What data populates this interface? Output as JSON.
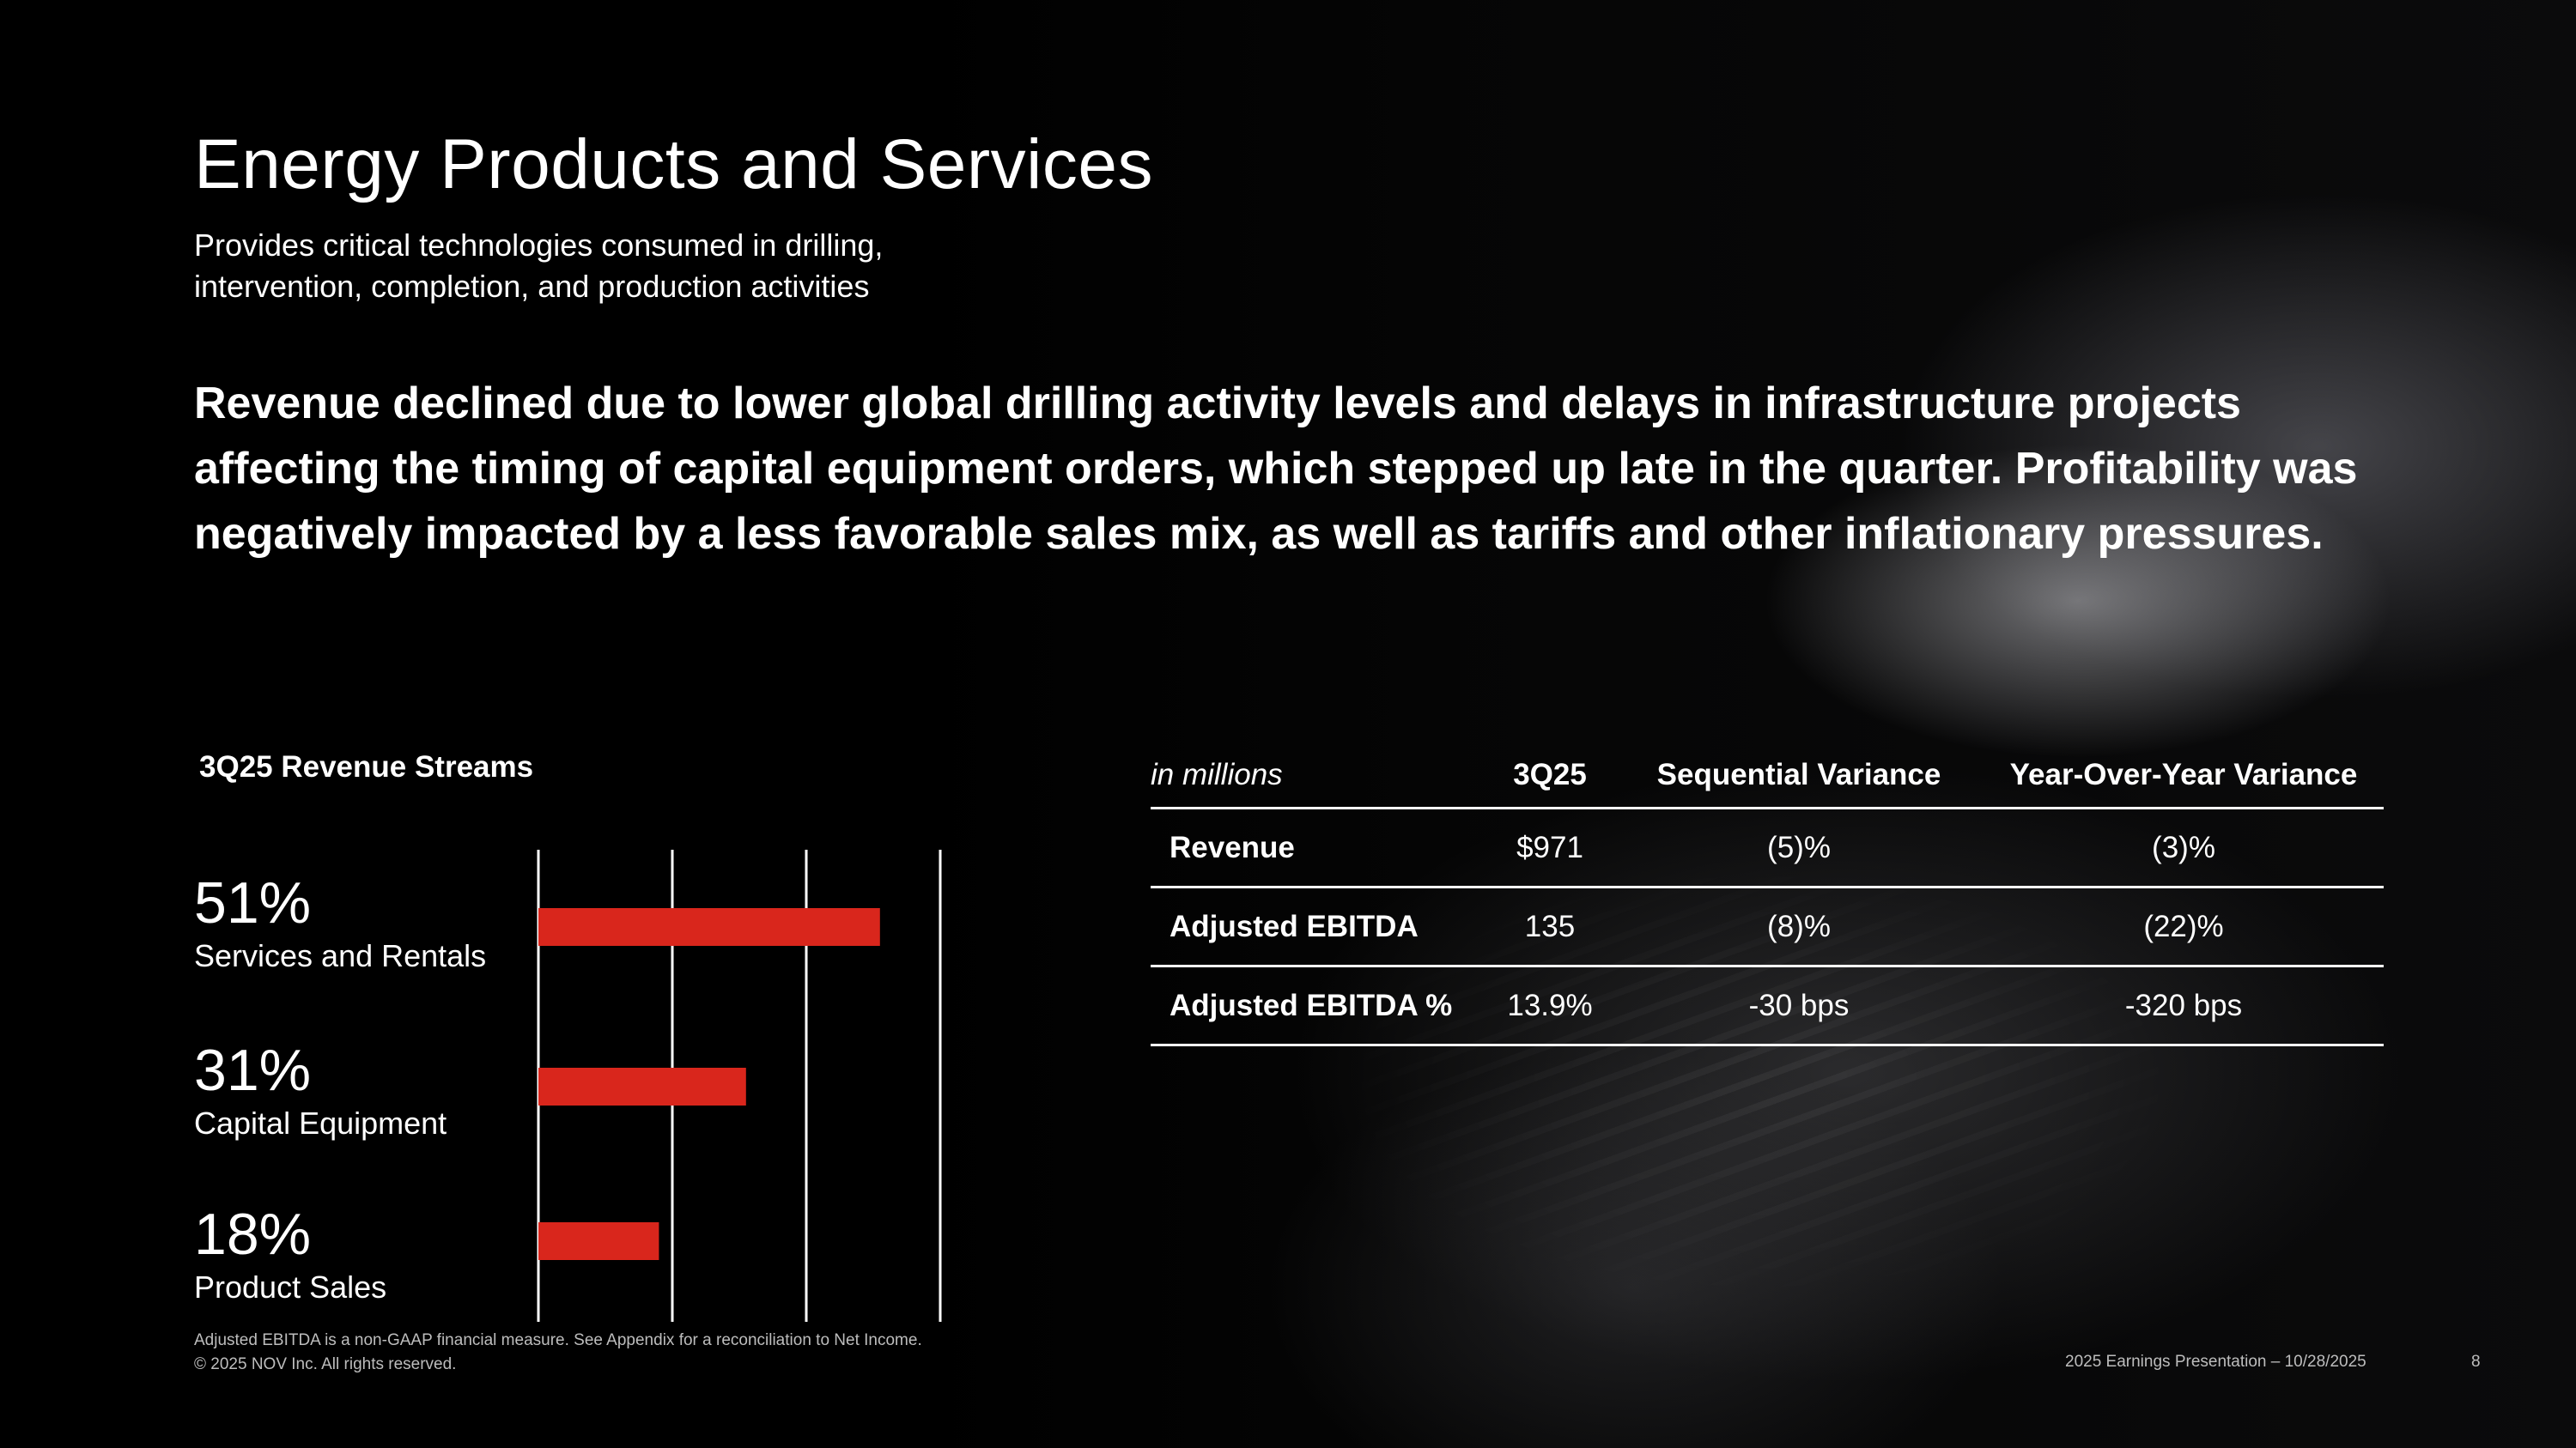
{
  "slide": {
    "title": "Energy Products and Services",
    "subtitle_line1": "Provides critical technologies consumed in drilling,",
    "subtitle_line2": "intervention, completion, and production activities",
    "lead": "Revenue declined due to lower global drilling activity levels and delays in infrastructure projects affecting the timing of capital equipment orders, which stepped up late in the quarter. Profitability was negatively impacted by a less favorable sales mix, as well as tariffs and other inflationary pressures."
  },
  "streams": {
    "title": "3Q25 Revenue Streams",
    "items": [
      {
        "pct": "51%",
        "label": "Services and Rentals"
      },
      {
        "pct": "31%",
        "label": "Capital Equipment"
      },
      {
        "pct": "18%",
        "label": "Product Sales"
      }
    ]
  },
  "chart_data": {
    "type": "bar",
    "orientation": "horizontal",
    "categories": [
      "Services and Rentals",
      "Capital Equipment",
      "Product Sales"
    ],
    "values": [
      51,
      31,
      18
    ],
    "xlim": [
      0,
      60
    ],
    "grid": true,
    "bar_color": "#d9261c"
  },
  "table": {
    "headers": [
      "in millions",
      "3Q25",
      "Sequential Variance",
      "Year-Over-Year Variance"
    ],
    "rows": [
      [
        "Revenue",
        "$971",
        "(5)%",
        "(3)%"
      ],
      [
        "Adjusted EBITDA",
        "135",
        "(8)%",
        "(22)%"
      ],
      [
        "Adjusted EBITDA %",
        "13.9%",
        "-30 bps",
        "-320 bps"
      ]
    ]
  },
  "footer": {
    "note_line1": "Adjusted EBITDA is a non-GAAP financial measure. See Appendix for a reconciliation to Net Income.",
    "note_line2": "© 2025 NOV Inc. All rights reserved.",
    "presentation": "2025 Earnings Presentation – 10/28/2025",
    "page": "8"
  },
  "colors": {
    "accent": "#d9261c",
    "background": "#000000",
    "text": "#ffffff"
  }
}
